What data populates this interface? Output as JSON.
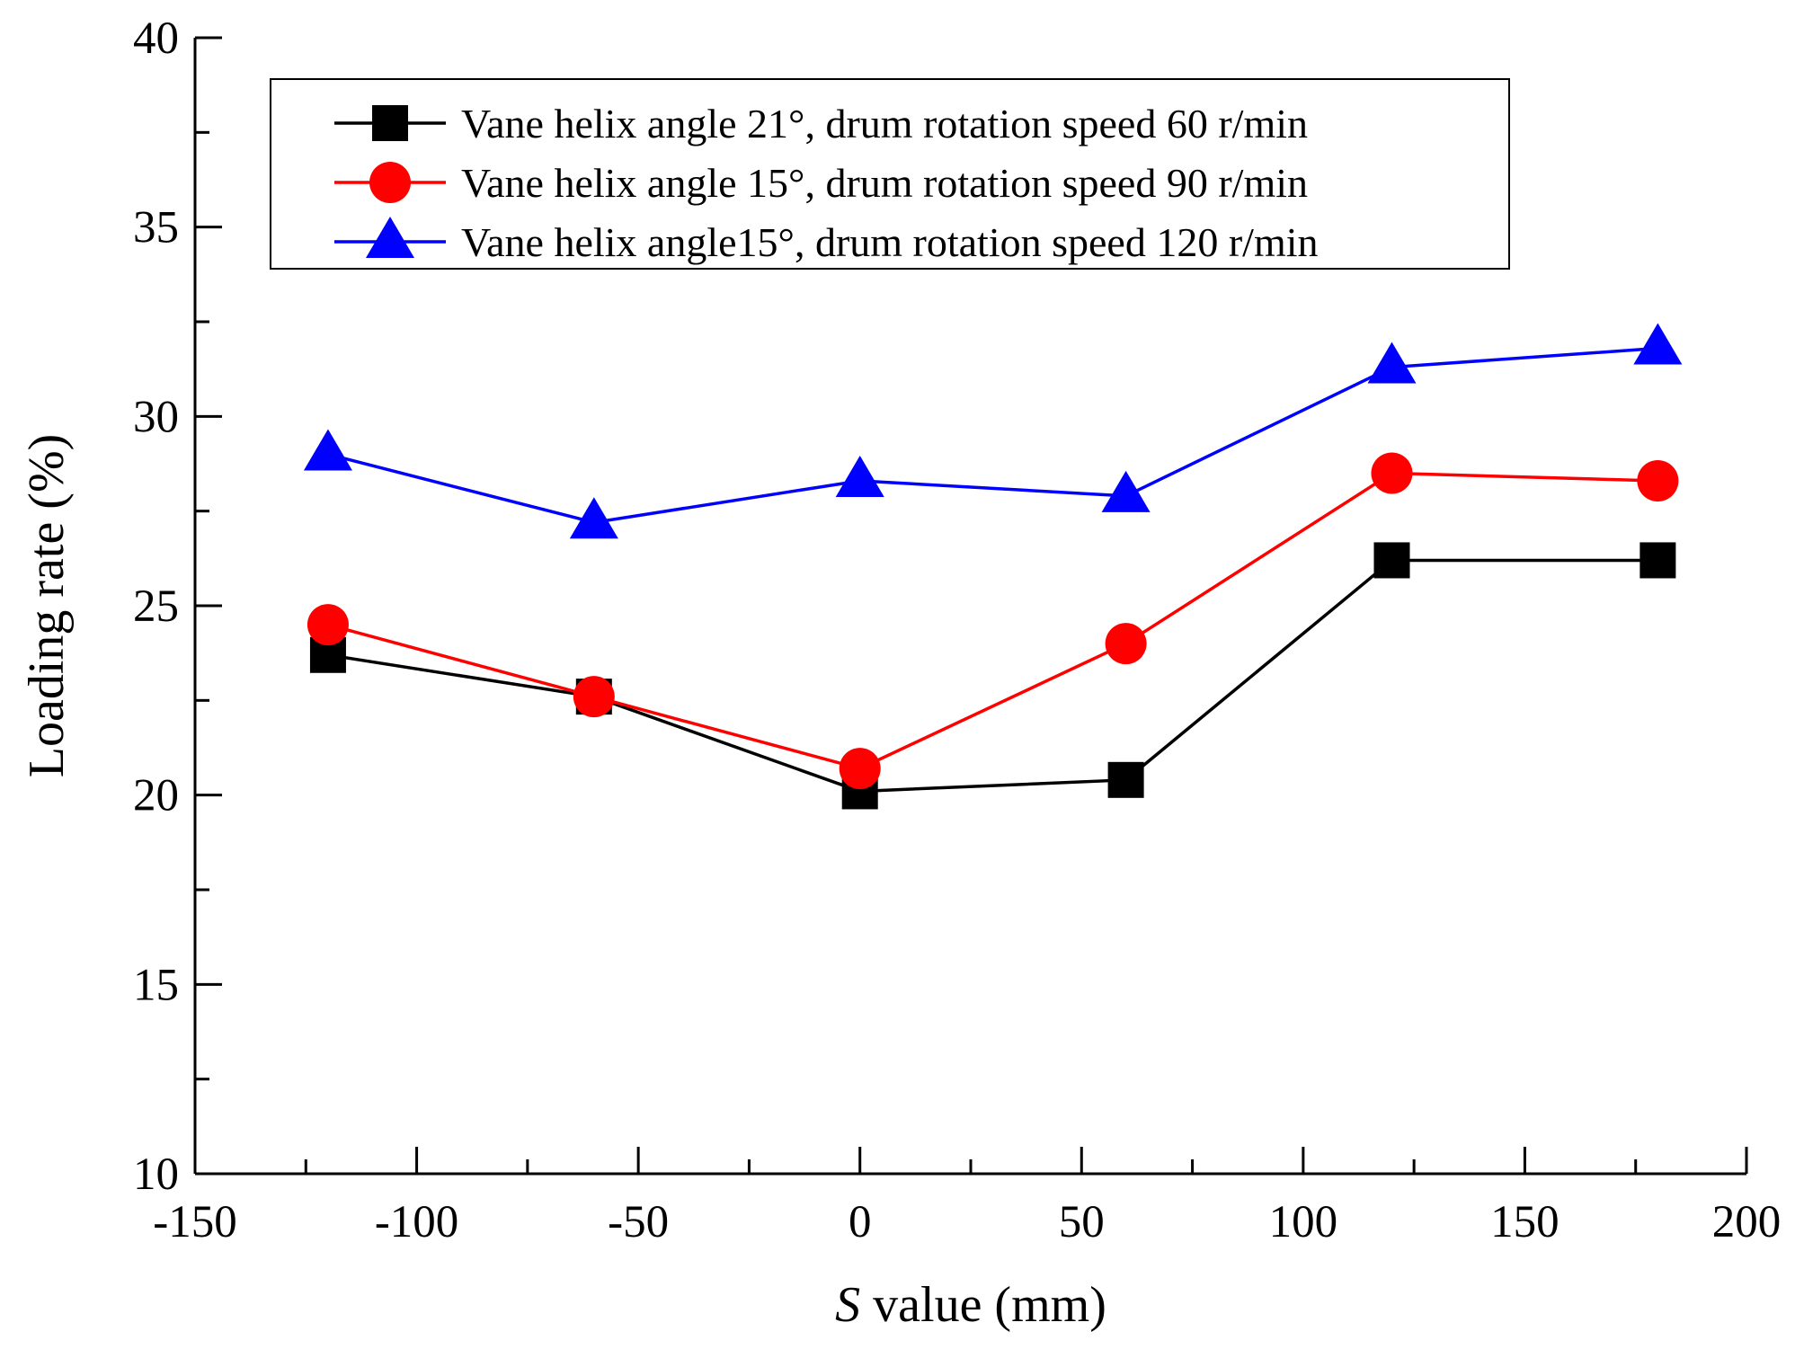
{
  "chart_data": {
    "type": "line",
    "title": "",
    "xlabel_italic": "S",
    "xlabel_rest": " value (mm)",
    "ylabel": "Loading rate (%)",
    "xlim": [
      -150,
      200
    ],
    "ylim": [
      10,
      40
    ],
    "xticks": [
      -150,
      -100,
      -50,
      0,
      50,
      100,
      150,
      200
    ],
    "yticks": [
      10,
      15,
      20,
      25,
      30,
      35,
      40
    ],
    "x": [
      -120,
      -60,
      0,
      60,
      120,
      180
    ],
    "legend_position": "top",
    "series": [
      {
        "name": "Vane helix angle 21°, drum rotation speed 60 r/min",
        "color": "#000000",
        "marker": "square",
        "values": [
          23.7,
          22.6,
          20.1,
          20.4,
          26.2,
          26.2
        ]
      },
      {
        "name": "Vane helix angle 15°, drum rotation speed 90 r/min",
        "color": "#ff0000",
        "marker": "circle",
        "values": [
          24.5,
          22.6,
          20.7,
          24.0,
          28.5,
          28.3
        ]
      },
      {
        "name": "Vane helix angle15°, drum rotation speed 120 r/min",
        "color": "#0000ff",
        "marker": "triangle",
        "values": [
          29.0,
          27.2,
          28.3,
          27.9,
          31.3,
          31.8
        ]
      }
    ]
  }
}
